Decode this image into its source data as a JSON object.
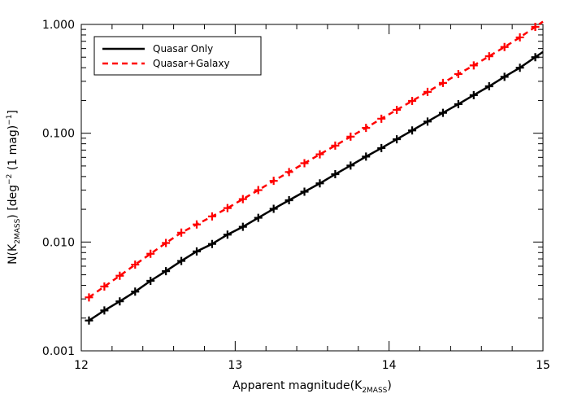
{
  "chart_data": {
    "type": "line",
    "title": "",
    "xlabel": {
      "prefix": "Apparent magnitude(K",
      "subscript": "2MASS",
      "suffix": ")"
    },
    "ylabel": {
      "p1": "N(K",
      "sub": "2MASS",
      "p2": ") [deg",
      "sup1": "−2",
      "p3": " (1 mag)",
      "sup2": "−1",
      "p4": "]"
    },
    "xlim": [
      12,
      15
    ],
    "ylim": [
      0.001,
      1.0
    ],
    "yscale": "log",
    "x_ticks": [
      12,
      13,
      14,
      15
    ],
    "x_tick_labels": [
      "12",
      "13",
      "14",
      "15"
    ],
    "y_ticks": [
      0.001,
      0.01,
      0.1,
      1.0
    ],
    "y_tick_labels": [
      "0.001",
      "0.010",
      "0.100",
      "1.000"
    ],
    "legend_position": "top-left",
    "series": [
      {
        "name": "Quasar Only",
        "color": "#000000",
        "line_style": "solid",
        "marker": "plus",
        "x": [
          12.05,
          12.15,
          12.25,
          12.35,
          12.45,
          12.55,
          12.65,
          12.75,
          12.85,
          12.95,
          13.05,
          13.15,
          13.25,
          13.35,
          13.45,
          13.55,
          13.65,
          13.75,
          13.85,
          13.95,
          14.05,
          14.15,
          14.25,
          14.35,
          14.45,
          14.55,
          14.65,
          14.75,
          14.85,
          14.95
        ],
        "y": [
          0.0019,
          0.00235,
          0.00285,
          0.0035,
          0.0044,
          0.0054,
          0.0067,
          0.0082,
          0.0096,
          0.0117,
          0.0138,
          0.0167,
          0.0202,
          0.0242,
          0.029,
          0.0346,
          0.042,
          0.0505,
          0.061,
          0.073,
          0.088,
          0.106,
          0.128,
          0.154,
          0.185,
          0.224,
          0.27,
          0.33,
          0.4,
          0.5
        ]
      },
      {
        "name": "Quasar+Galaxy",
        "color": "#ff0000",
        "line_style": "dashed",
        "marker": "plus",
        "x": [
          12.05,
          12.15,
          12.25,
          12.35,
          12.45,
          12.55,
          12.65,
          12.75,
          12.85,
          12.95,
          13.05,
          13.15,
          13.25,
          13.35,
          13.45,
          13.55,
          13.65,
          13.75,
          13.85,
          13.95,
          14.05,
          14.15,
          14.25,
          14.35,
          14.45,
          14.55,
          14.65,
          14.75,
          14.85,
          14.95
        ],
        "y": [
          0.0031,
          0.0039,
          0.0049,
          0.0062,
          0.0078,
          0.0098,
          0.0122,
          0.0145,
          0.0172,
          0.0205,
          0.0248,
          0.03,
          0.0365,
          0.044,
          0.053,
          0.064,
          0.077,
          0.093,
          0.112,
          0.136,
          0.164,
          0.198,
          0.24,
          0.29,
          0.35,
          0.42,
          0.51,
          0.62,
          0.76,
          0.95
        ]
      }
    ]
  }
}
